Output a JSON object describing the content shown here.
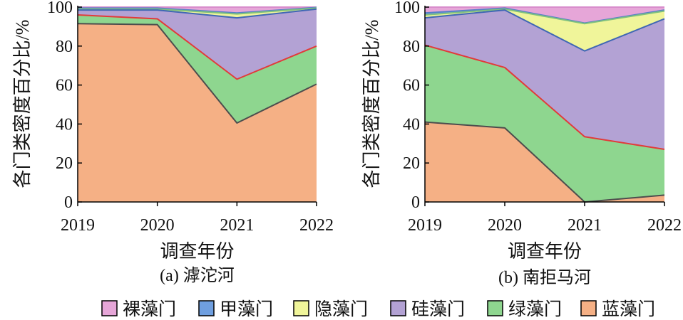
{
  "chart_data": [
    {
      "type": "area",
      "stacked": true,
      "caption": "(a) 滹沱河",
      "xlabel": "调查年份",
      "ylabel": "各门类密度百分比/%",
      "x": [
        "2019",
        "2020",
        "2021",
        "2022"
      ],
      "ylim": [
        0,
        100
      ],
      "yticks": [
        0,
        20,
        40,
        60,
        80,
        100
      ],
      "grid": false,
      "series": [
        {
          "name": "蓝藻门",
          "values": [
            91.5,
            91,
            40.5,
            60.5
          ]
        },
        {
          "name": "绿藻门",
          "values": [
            4.5,
            3,
            22.5,
            19.5
          ]
        },
        {
          "name": "硅藻门",
          "values": [
            2.5,
            4.5,
            31.5,
            19
          ]
        },
        {
          "name": "隐藻门",
          "values": [
            0.5,
            0.5,
            2,
            0.5
          ]
        },
        {
          "name": "甲藻门",
          "values": [
            0.5,
            0.5,
            0.5,
            0.3
          ]
        },
        {
          "name": "裸藻门",
          "values": [
            0.5,
            0.5,
            3,
            0.2
          ]
        }
      ]
    },
    {
      "type": "area",
      "stacked": true,
      "caption": "(b) 南拒马河",
      "xlabel": "调查年份",
      "ylabel": "各门类密度百分比/%",
      "x": [
        "2019",
        "2020",
        "2021",
        "2022"
      ],
      "ylim": [
        0,
        100
      ],
      "yticks": [
        0,
        20,
        40,
        60,
        80,
        100
      ],
      "grid": false,
      "series": [
        {
          "name": "蓝藻门",
          "values": [
            41,
            38,
            0,
            3.5
          ]
        },
        {
          "name": "绿藻门",
          "values": [
            39.5,
            31,
            33.5,
            23.5
          ]
        },
        {
          "name": "硅藻门",
          "values": [
            14,
            29.5,
            44,
            67
          ]
        },
        {
          "name": "隐藻门",
          "values": [
            1.5,
            0.5,
            14,
            4
          ]
        },
        {
          "name": "甲藻门",
          "values": [
            1,
            0.5,
            0.3,
            0.5
          ]
        },
        {
          "name": "裸藻门",
          "values": [
            3,
            0.5,
            8.2,
            1.5
          ]
        }
      ]
    }
  ],
  "legend": {
    "placement": "bottom",
    "items": [
      {
        "label": "裸藻门",
        "color": "#e6a6d8"
      },
      {
        "label": "甲藻门",
        "color": "#6f9fe0"
      },
      {
        "label": "隐藻门",
        "color": "#f0f59a"
      },
      {
        "label": "硅藻门",
        "color": "#b3a2d4"
      },
      {
        "label": "绿藻门",
        "color": "#8ed68f"
      },
      {
        "label": "蓝藻门",
        "color": "#f5b085"
      }
    ]
  },
  "colors": {
    "蓝藻门": {
      "fill": "#f5b085",
      "line": "#4d4d4d"
    },
    "绿藻门": {
      "fill": "#8ed68f",
      "line": "#e23a3a"
    },
    "硅藻门": {
      "fill": "#b3a2d4",
      "line": "#3f67b4"
    },
    "隐藻门": {
      "fill": "#f0f59a",
      "line": "#7fc07f"
    },
    "甲藻门": {
      "fill": "#6f9fe0",
      "line": "#5580c8"
    },
    "裸藻门": {
      "fill": "#e6a6d8",
      "line": "#d88ccb"
    }
  }
}
